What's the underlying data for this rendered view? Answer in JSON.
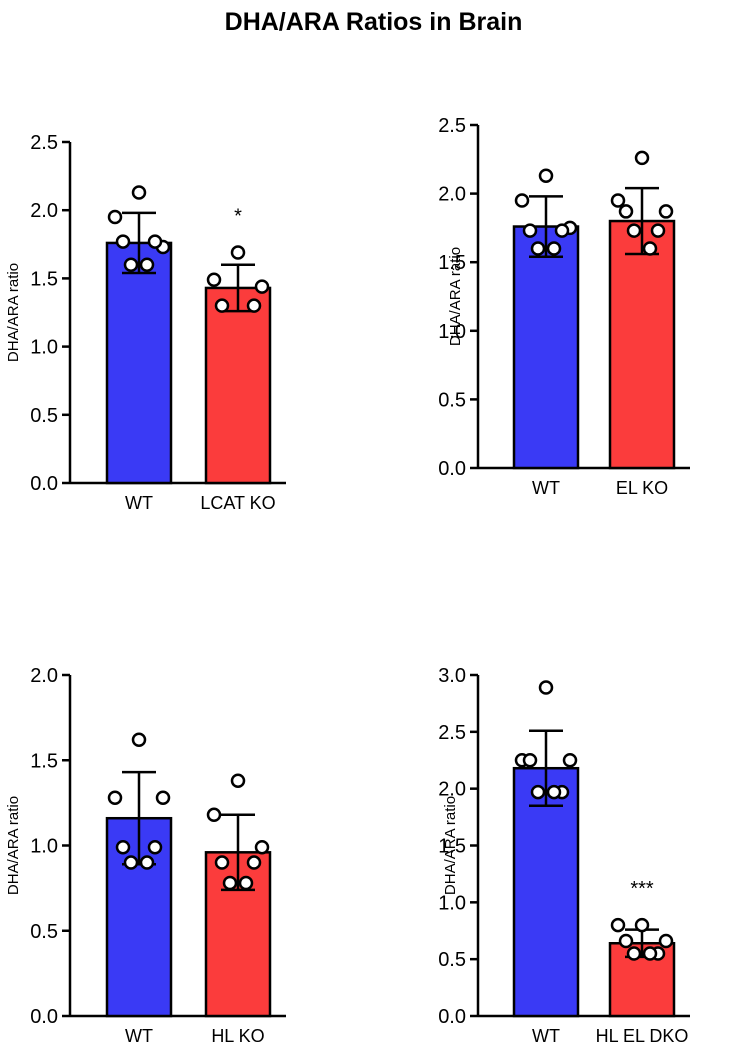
{
  "title": "DHA/ARA Ratios in Brain",
  "colors": {
    "wt": "#3a3af5",
    "ko": "#fb3c3c",
    "outline": "#000000",
    "point": "#ffffff"
  },
  "chart_data": [
    {
      "type": "bar",
      "ylabel": "DHA/ARA ratio",
      "ylim": [
        0,
        2.5
      ],
      "yticks": [
        "0.0",
        "0.5",
        "1.0",
        "1.5",
        "2.0",
        "2.5"
      ],
      "categories": [
        "WT",
        "LCAT KO"
      ],
      "values": [
        1.76,
        1.43
      ],
      "sd": [
        0.22,
        0.17
      ],
      "annotations": [
        "",
        "*"
      ],
      "points": [
        [
          2.13,
          1.95,
          1.73,
          1.77,
          1.77,
          1.6,
          1.6
        ],
        [
          1.69,
          1.49,
          1.44,
          1.3,
          1.3
        ]
      ]
    },
    {
      "type": "bar",
      "ylabel": "DHA/ARA ratio",
      "ylim": [
        0,
        2.5
      ],
      "yticks": [
        "0.0",
        "0.5",
        "1.0",
        "1.5",
        "2.0",
        "2.5"
      ],
      "categories": [
        "WT",
        "EL KO"
      ],
      "values": [
        1.76,
        1.8
      ],
      "sd": [
        0.22,
        0.24
      ],
      "annotations": [
        "",
        ""
      ],
      "points": [
        [
          2.13,
          1.95,
          1.75,
          1.73,
          1.73,
          1.6,
          1.6
        ],
        [
          2.26,
          1.95,
          1.87,
          1.87,
          1.73,
          1.73,
          1.6
        ]
      ]
    },
    {
      "type": "bar",
      "ylabel": "DHA/ARA ratio",
      "ylim": [
        0,
        2.0
      ],
      "yticks": [
        "0.0",
        "0.5",
        "1.0",
        "1.5",
        "2.0"
      ],
      "categories": [
        "WT",
        "HL KO"
      ],
      "values": [
        1.16,
        0.96
      ],
      "sd": [
        0.27,
        0.22
      ],
      "annotations": [
        "",
        ""
      ],
      "points": [
        [
          1.62,
          1.28,
          1.28,
          0.99,
          0.99,
          0.9,
          0.9
        ],
        [
          1.38,
          1.18,
          0.99,
          0.9,
          0.9,
          0.78,
          0.78
        ]
      ]
    },
    {
      "type": "bar",
      "ylabel": "DHA/ARA ratio",
      "ylim": [
        0,
        3.0
      ],
      "yticks": [
        "0.0",
        "0.5",
        "1.0",
        "1.5",
        "2.0",
        "2.5",
        "3.0"
      ],
      "categories": [
        "WT",
        "HL EL DKO"
      ],
      "values": [
        2.18,
        0.64
      ],
      "sd": [
        0.33,
        0.12
      ],
      "annotations": [
        "",
        "***"
      ],
      "points": [
        [
          2.89,
          2.25,
          2.25,
          2.25,
          1.97,
          1.97,
          1.97
        ],
        [
          0.8,
          0.8,
          0.66,
          0.66,
          0.55,
          0.55,
          0.55
        ]
      ]
    }
  ]
}
